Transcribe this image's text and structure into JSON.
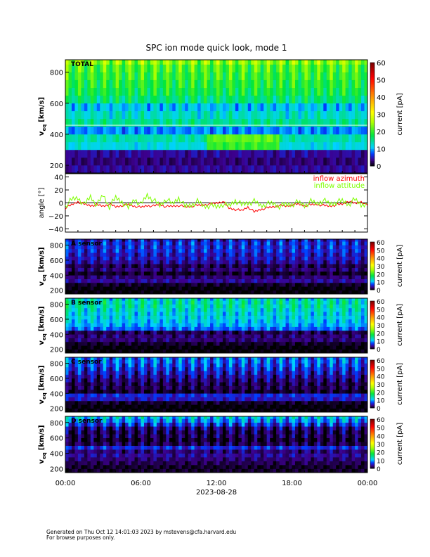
{
  "colors": {
    "azimuth": "#ff0000",
    "attitude": "#7fff00",
    "zero_line": "#000000"
  },
  "chart_data": [
    {
      "type": "heatmap",
      "title": "SPC ion mode quick look, mode 1",
      "panel_label": "TOTAL",
      "ylabel": "v_eq [km/s]",
      "ylabel_main": "v",
      "ylabel_sub": "eq",
      "ylabel_unit": "[km/s]",
      "yticks": [
        "200",
        "400",
        "600",
        "800"
      ],
      "ylim": [
        150,
        880
      ],
      "velocity_bins": [
        175,
        225,
        275,
        325,
        375,
        425,
        475,
        525,
        575,
        625,
        675,
        725,
        775,
        825,
        875
      ],
      "profile_pA": [
        4,
        3,
        4,
        12,
        14,
        9,
        15,
        13,
        11,
        16,
        18,
        19,
        20,
        21,
        24
      ],
      "hourly_modulation_pA": 5,
      "colorbar": {
        "label": "current [pA]",
        "ticks": [
          "0",
          "10",
          "20",
          "30",
          "40",
          "50",
          "60"
        ],
        "range": [
          0,
          60
        ]
      }
    },
    {
      "type": "line",
      "ylabel": "angle [°]",
      "yticks": [
        "−40",
        "−20",
        "0",
        "20",
        "40"
      ],
      "ylim": [
        -45,
        45
      ],
      "x_hours": [
        0,
        0.5,
        1,
        1.5,
        2,
        2.5,
        3,
        3.5,
        4,
        4.5,
        5,
        5.5,
        6,
        6.5,
        7,
        7.5,
        8,
        8.5,
        9,
        9.5,
        10,
        10.5,
        11,
        11.5,
        12,
        12.5,
        13,
        13.5,
        14,
        14.5,
        15,
        15.5,
        16,
        16.5,
        17,
        17.5,
        18,
        18.5,
        19,
        19.5,
        20,
        20.5,
        21,
        21.5,
        22,
        22.5,
        23,
        23.5,
        24
      ],
      "series": [
        {
          "name": "inflow azimuth",
          "values": [
            -8,
            -3,
            2,
            -2,
            -4,
            -3,
            -5,
            -2,
            -6,
            -4,
            -3,
            -5,
            -7,
            -4,
            -5,
            -2,
            -6,
            -5,
            -4,
            -6,
            -5,
            -4,
            -3,
            -2,
            0,
            2,
            -8,
            -10,
            -12,
            -6,
            -14,
            -10,
            -8,
            -6,
            -4,
            -5,
            -3,
            -2,
            -4,
            -3,
            -2,
            -4,
            -5,
            -3,
            -2,
            3,
            -1,
            2,
            -4
          ]
        },
        {
          "name": "inflow attitude",
          "values": [
            -5,
            5,
            8,
            -3,
            10,
            -4,
            12,
            -6,
            8,
            2,
            -8,
            6,
            -3,
            12,
            4,
            -4,
            6,
            -2,
            8,
            -6,
            -3,
            2,
            -5,
            -4,
            -6,
            -2,
            -5,
            4,
            -3,
            0,
            2,
            -4,
            -2,
            -1,
            -5,
            -3,
            -2,
            1,
            -4,
            2,
            -1,
            4,
            -2,
            1,
            3,
            -2,
            5,
            -3,
            0
          ]
        }
      ]
    },
    {
      "type": "heatmap",
      "panel_label": "A sensor",
      "ylabel_main": "v",
      "ylabel_sub": "eq",
      "ylabel_unit": "[km/s]",
      "yticks": [
        "200",
        "400",
        "600",
        "800"
      ],
      "ylim": [
        150,
        880
      ],
      "velocity_bins": [
        175,
        225,
        275,
        325,
        375,
        425,
        475,
        525,
        575,
        625,
        675,
        725,
        775,
        825,
        875
      ],
      "profile_pA": [
        0,
        0,
        1,
        4,
        3,
        1,
        3,
        2,
        4,
        5,
        5,
        6,
        6,
        6,
        5
      ],
      "hourly_modulation_pA": 3,
      "colorbar": {
        "label": "current [pA]",
        "ticks": [
          "0",
          "10",
          "20",
          "30",
          "40",
          "50",
          "60"
        ],
        "range": [
          0,
          60
        ]
      }
    },
    {
      "type": "heatmap",
      "panel_label": "B sensor",
      "ylabel_main": "v",
      "ylabel_sub": "eq",
      "ylabel_unit": "[km/s]",
      "yticks": [
        "200",
        "400",
        "600",
        "800"
      ],
      "ylim": [
        150,
        880
      ],
      "velocity_bins": [
        175,
        225,
        275,
        325,
        375,
        425,
        475,
        525,
        575,
        625,
        675,
        725,
        775,
        825,
        875
      ],
      "profile_pA": [
        0,
        0,
        1,
        3,
        3,
        2,
        8,
        10,
        11,
        12,
        12,
        13,
        14,
        14,
        13
      ],
      "hourly_modulation_pA": 4,
      "colorbar": {
        "label": "current [pA]",
        "ticks": [
          "0",
          "10",
          "20",
          "30",
          "40",
          "50",
          "60"
        ],
        "range": [
          0,
          60
        ]
      }
    },
    {
      "type": "heatmap",
      "panel_label": "C sensor",
      "ylabel_main": "v",
      "ylabel_sub": "eq",
      "ylabel_unit": "[km/s]",
      "yticks": [
        "200",
        "400",
        "600",
        "800"
      ],
      "ylim": [
        150,
        880
      ],
      "velocity_bins": [
        175,
        225,
        275,
        325,
        375,
        425,
        475,
        525,
        575,
        625,
        675,
        725,
        775,
        825,
        875
      ],
      "profile_pA": [
        0,
        0,
        1,
        5,
        6,
        1,
        2,
        2,
        3,
        4,
        5,
        6,
        7,
        8,
        8
      ],
      "hourly_modulation_pA": 4,
      "colorbar": {
        "label": "current [pA]",
        "ticks": [
          "0",
          "10",
          "20",
          "30",
          "40",
          "50",
          "60"
        ],
        "range": [
          0,
          60
        ]
      }
    },
    {
      "type": "heatmap",
      "panel_label": "D sensor",
      "ylabel_main": "v",
      "ylabel_sub": "eq",
      "ylabel_unit": "[km/s]",
      "yticks": [
        "200",
        "400",
        "600",
        "800"
      ],
      "ylim": [
        150,
        880
      ],
      "velocity_bins": [
        175,
        225,
        275,
        325,
        375,
        425,
        475,
        525,
        575,
        625,
        675,
        725,
        775,
        825,
        875
      ],
      "profile_pA": [
        1,
        1,
        2,
        3,
        4,
        3,
        6,
        2,
        1,
        2,
        2,
        3,
        6,
        9,
        11
      ],
      "hourly_modulation_pA": 4,
      "colorbar": {
        "label": "current [pA]",
        "ticks": [
          "0",
          "10",
          "20",
          "30",
          "40",
          "50",
          "60"
        ],
        "range": [
          0,
          60
        ]
      }
    }
  ],
  "xaxis": {
    "ticks": [
      "00:00",
      "06:00",
      "12:00",
      "18:00",
      "00:00"
    ],
    "date_label": "2023-08-28"
  },
  "footer": {
    "line1": "Generated on Thu Oct 12 14:01:03 2023 by mstevens@cfa.harvard.edu",
    "line2": "For browse purposes only."
  }
}
